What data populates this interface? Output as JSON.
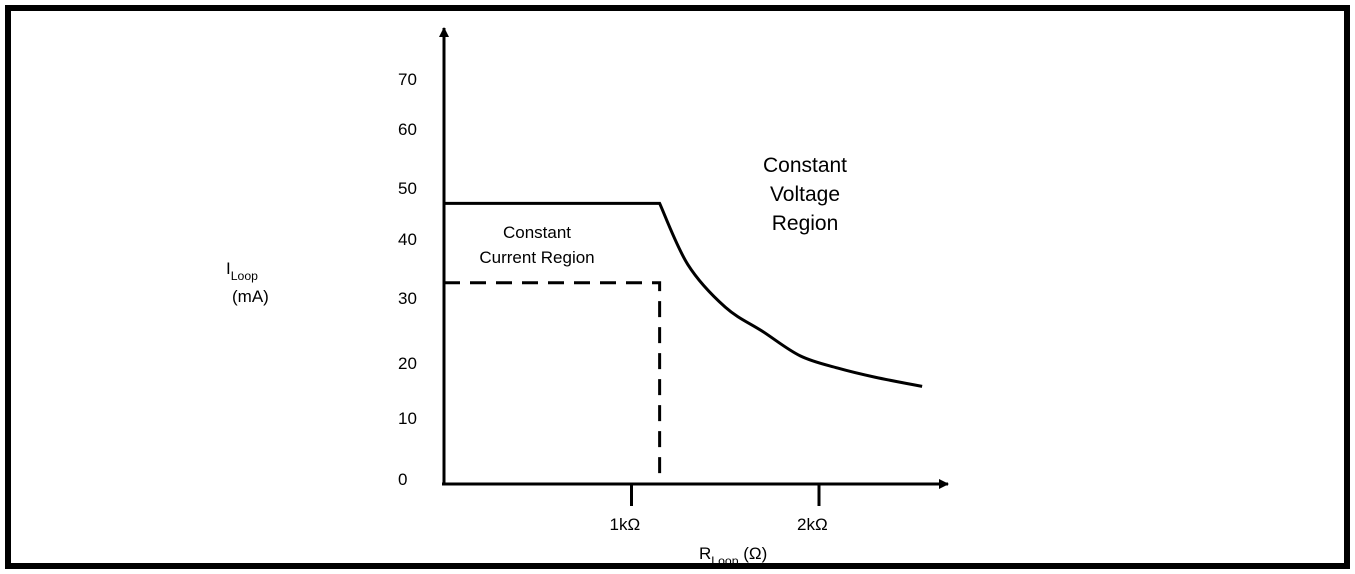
{
  "chart_data": {
    "type": "line",
    "y_axis": {
      "label_main": "I",
      "label_sub": "Loop",
      "label_unit": "(mA)",
      "ticks": [
        "70",
        "60",
        "50",
        "40",
        "30",
        "20",
        "10",
        "0"
      ],
      "range": [
        0,
        70
      ]
    },
    "x_axis": {
      "label_main": "R",
      "label_sub": "Loop",
      "label_unit": "(Ω)",
      "ticks": [
        "1kΩ",
        "2kΩ"
      ],
      "tick_values": [
        1000,
        2000
      ],
      "range": [
        0,
        2500
      ]
    },
    "series": [
      {
        "style": "solid",
        "x": [
          0,
          1150,
          1150,
          1300,
          1500,
          1700,
          1900,
          2100,
          2300,
          2550
        ],
        "y": [
          46,
          46,
          46,
          36,
          29,
          25,
          21,
          19,
          17.5,
          16
        ]
      },
      {
        "style": "dashed",
        "x": [
          0,
          1150,
          1150
        ],
        "y": [
          33,
          33,
          0
        ]
      }
    ],
    "annotations": {
      "constant_current": [
        "Constant",
        "Current Region"
      ],
      "constant_voltage": [
        "Constant",
        "Voltage",
        "Region"
      ]
    },
    "grid": false,
    "legend": "none"
  }
}
